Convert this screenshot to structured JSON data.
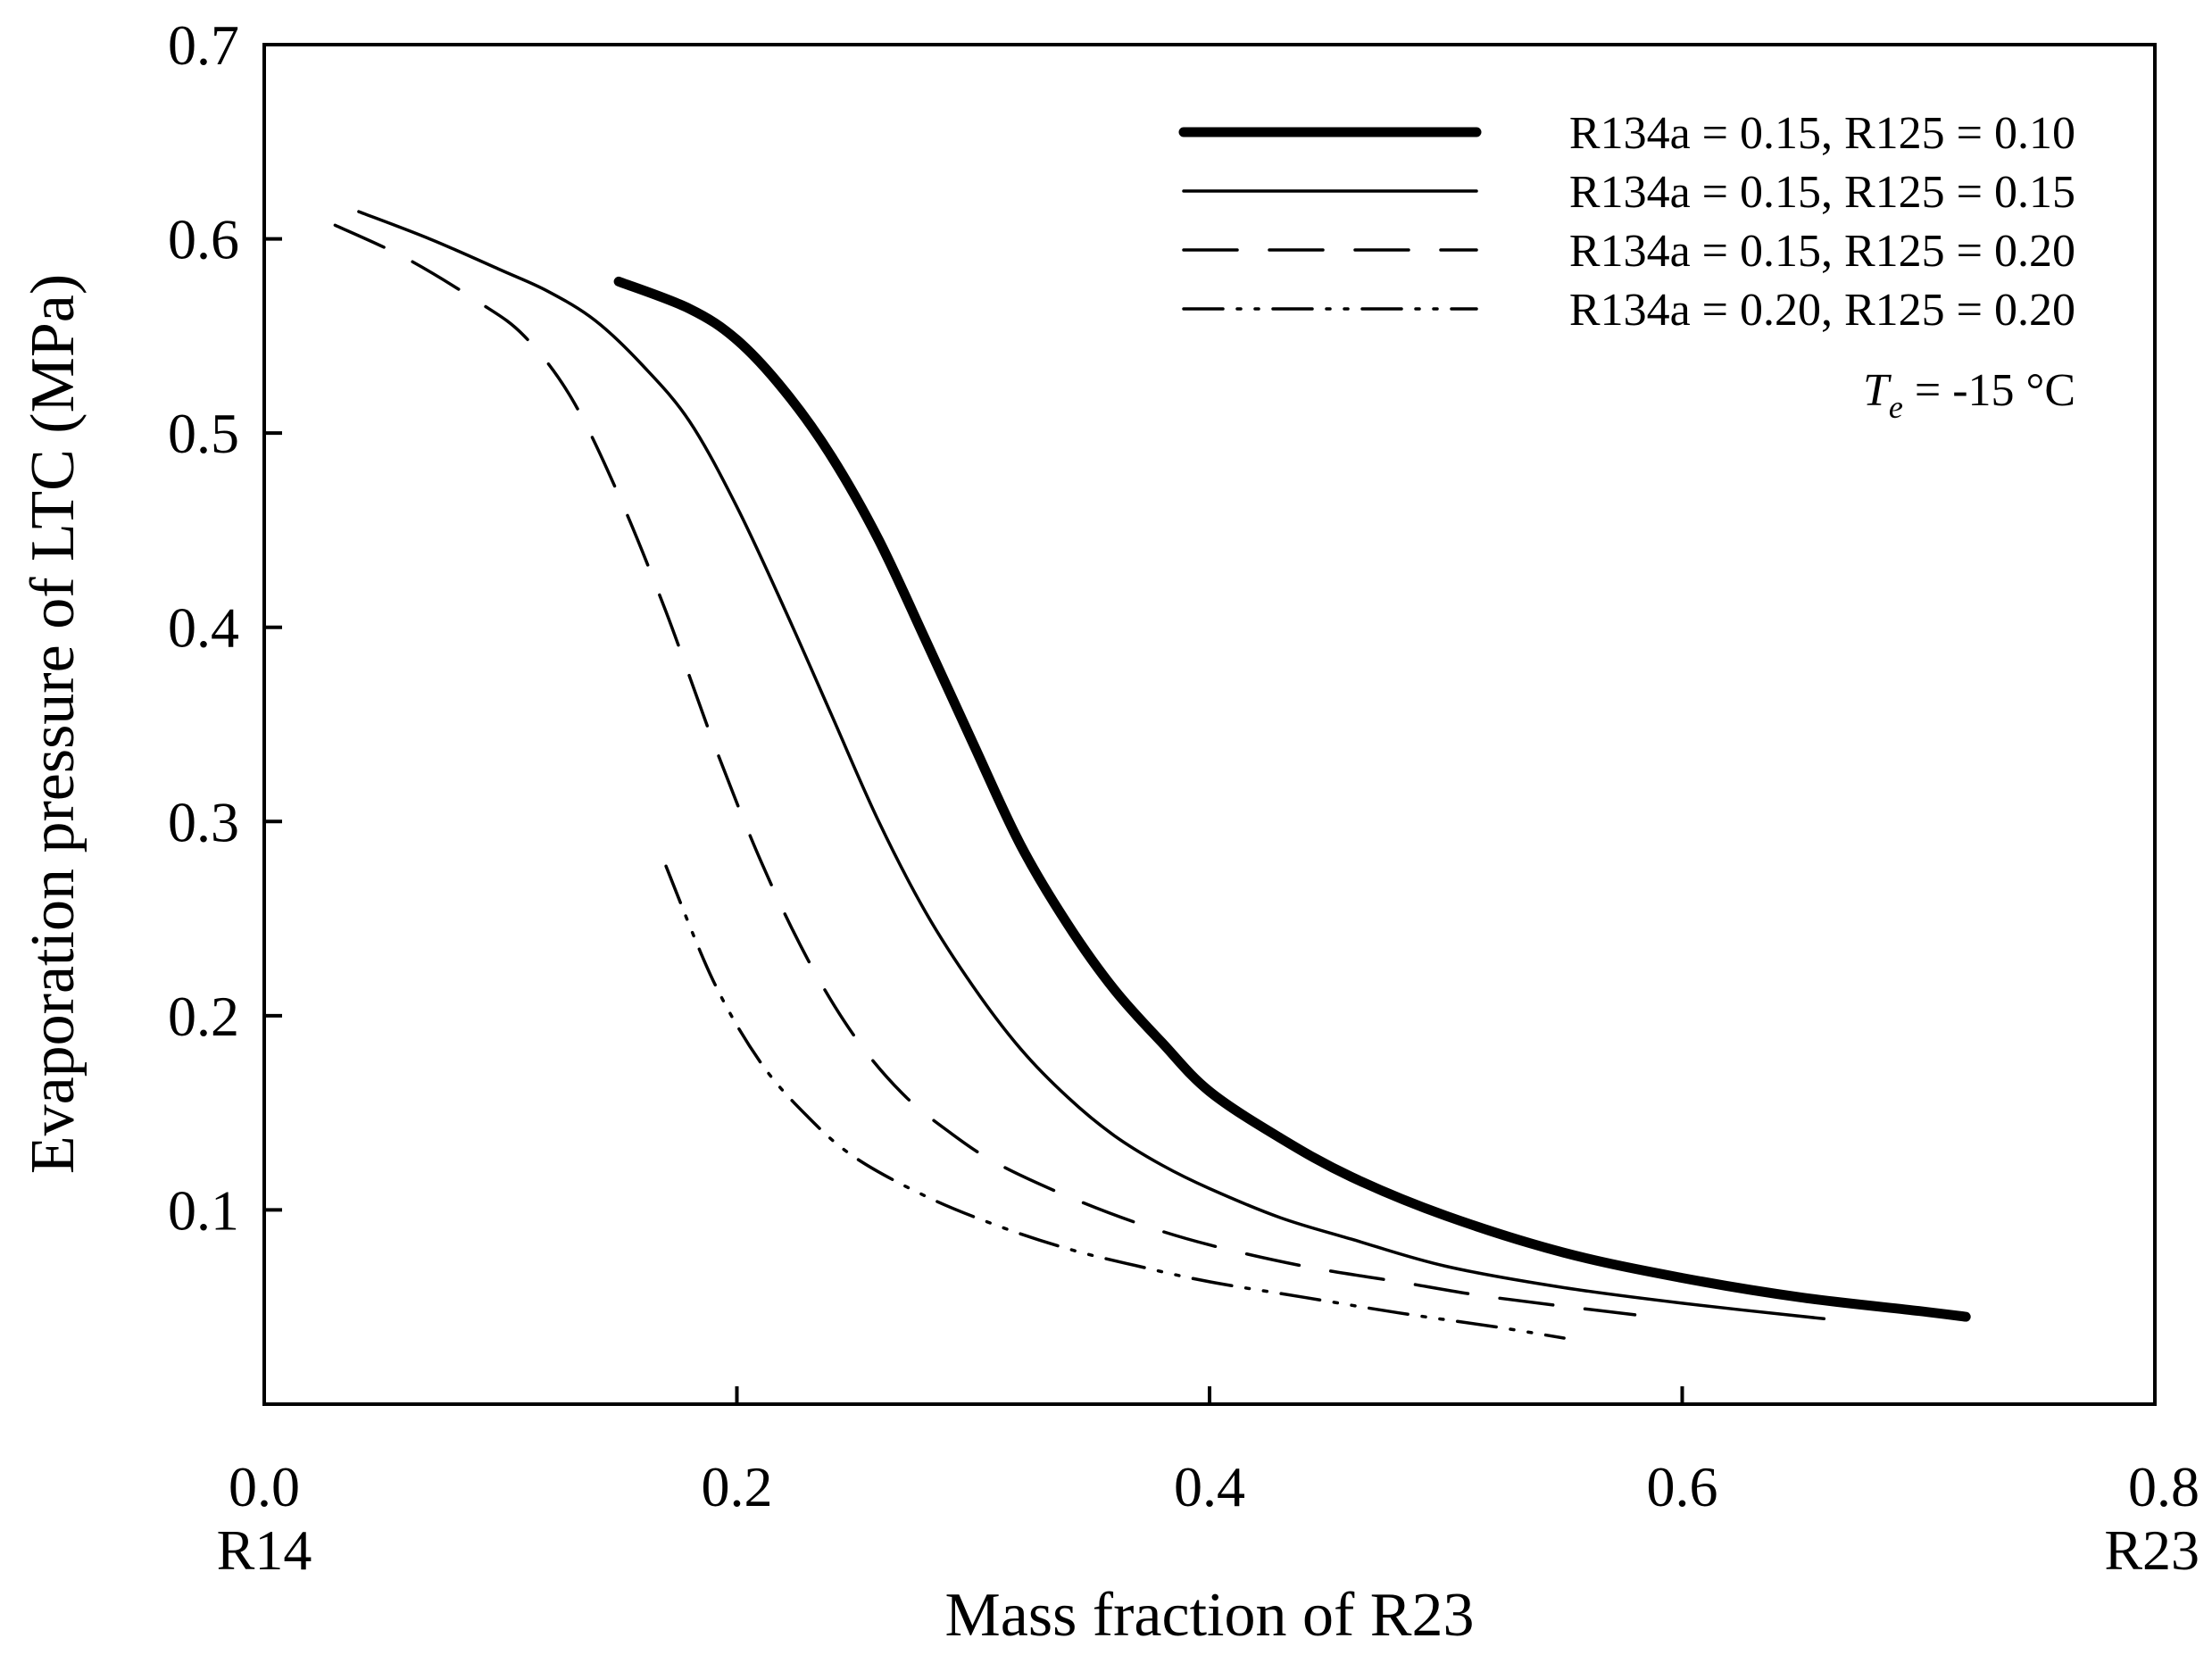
{
  "chart_data": {
    "type": "line",
    "title": "",
    "xlabel": "Mass fraction of R23",
    "ylabel": "Evaporation pressure of LTC (MPa)",
    "xlim": [
      0.0,
      0.8
    ],
    "ylim": [
      0.0,
      0.7
    ],
    "grid": false,
    "x_ticks": [
      {
        "value": 0.0,
        "label": "0.0",
        "sublabel": "R14"
      },
      {
        "value": 0.2,
        "label": "0.2",
        "sublabel": ""
      },
      {
        "value": 0.4,
        "label": "0.4",
        "sublabel": ""
      },
      {
        "value": 0.6,
        "label": "0.6",
        "sublabel": ""
      },
      {
        "value": 0.8,
        "label": "0.8",
        "sublabel": "R23"
      }
    ],
    "y_ticks": [
      {
        "value": 0.1,
        "label": "0.1"
      },
      {
        "value": 0.2,
        "label": "0.2"
      },
      {
        "value": 0.3,
        "label": "0.3"
      },
      {
        "value": 0.4,
        "label": "0.4"
      },
      {
        "value": 0.5,
        "label": "0.5"
      },
      {
        "value": 0.6,
        "label": "0.6"
      },
      {
        "value": 0.7,
        "label": "0.7"
      }
    ],
    "legend_position": "top-right",
    "annotation": {
      "symbol": "T",
      "subscript": "e",
      "text": " = -15 °C"
    },
    "series": [
      {
        "name": "R134a = 0.15, R125 = 0.10",
        "style": "thick-solid",
        "x": [
          0.15,
          0.18,
          0.2,
          0.22,
          0.24,
          0.26,
          0.28,
          0.3,
          0.32,
          0.34,
          0.36,
          0.38,
          0.4,
          0.43,
          0.46,
          0.5,
          0.55,
          0.6,
          0.65,
          0.7,
          0.72
        ],
        "y": [
          0.578,
          0.564,
          0.548,
          0.522,
          0.488,
          0.445,
          0.393,
          0.34,
          0.288,
          0.247,
          0.213,
          0.186,
          0.161,
          0.137,
          0.117,
          0.097,
          0.078,
          0.065,
          0.055,
          0.048,
          0.045
        ]
      },
      {
        "name": "R134a = 0.15, R125 = 0.15",
        "style": "thin-solid",
        "x": [
          0.04,
          0.07,
          0.1,
          0.12,
          0.14,
          0.16,
          0.18,
          0.2,
          0.22,
          0.24,
          0.26,
          0.28,
          0.3,
          0.32,
          0.34,
          0.36,
          0.38,
          0.4,
          0.43,
          0.46,
          0.5,
          0.55,
          0.6,
          0.66
        ],
        "y": [
          0.614,
          0.6,
          0.584,
          0.573,
          0.558,
          0.535,
          0.506,
          0.462,
          0.41,
          0.355,
          0.3,
          0.253,
          0.215,
          0.183,
          0.158,
          0.138,
          0.123,
          0.111,
          0.096,
          0.085,
          0.071,
          0.06,
          0.052,
          0.044
        ]
      },
      {
        "name": "R134a = 0.15, R125 = 0.20",
        "style": "long-dash",
        "x": [
          0.03,
          0.06,
          0.09,
          0.11,
          0.13,
          0.15,
          0.17,
          0.19,
          0.21,
          0.23,
          0.25,
          0.27,
          0.29,
          0.31,
          0.34,
          0.37,
          0.4,
          0.44,
          0.48,
          0.52,
          0.58
        ],
        "y": [
          0.607,
          0.59,
          0.568,
          0.55,
          0.518,
          0.468,
          0.408,
          0.341,
          0.28,
          0.229,
          0.189,
          0.16,
          0.14,
          0.124,
          0.107,
          0.093,
          0.082,
          0.071,
          0.063,
          0.055,
          0.046
        ]
      },
      {
        "name": "R134a = 0.20, R125 = 0.20",
        "style": "dash-dot-dot",
        "x": [
          0.17,
          0.19,
          0.21,
          0.23,
          0.25,
          0.28,
          0.31,
          0.34,
          0.37,
          0.4,
          0.44,
          0.48,
          0.52,
          0.55
        ],
        "y": [
          0.277,
          0.218,
          0.176,
          0.148,
          0.127,
          0.107,
          0.092,
          0.08,
          0.071,
          0.063,
          0.055,
          0.047,
          0.04,
          0.034
        ]
      }
    ]
  }
}
